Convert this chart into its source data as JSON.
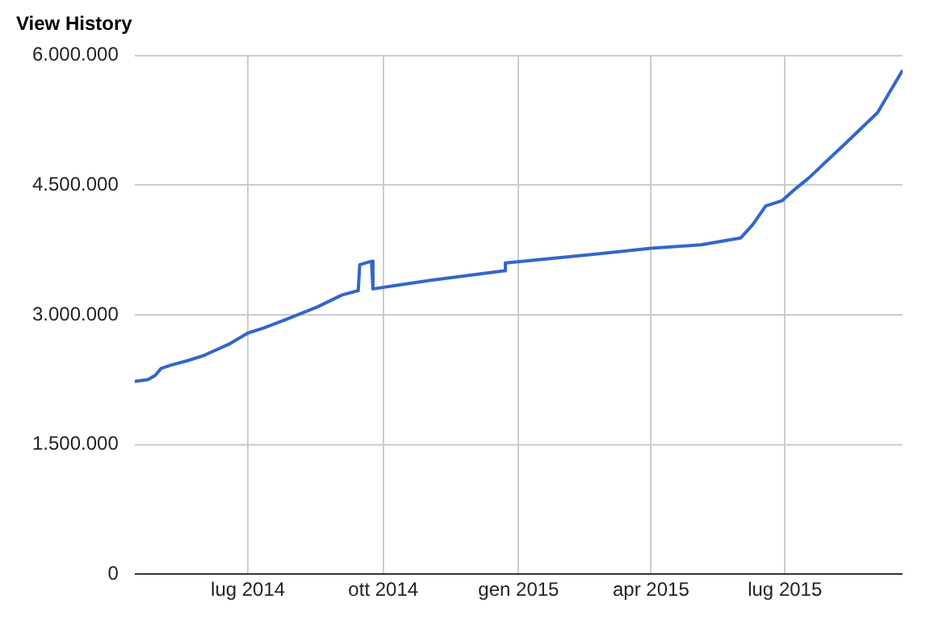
{
  "chart_data": {
    "type": "line",
    "title": "View History",
    "x": [
      "2014-04-15",
      "2014-04-24",
      "2014-04-29",
      "2014-05-03",
      "2014-05-10",
      "2014-05-21",
      "2014-06-01",
      "2014-06-18",
      "2014-07-01",
      "2014-07-12",
      "2014-07-26",
      "2014-08-17",
      "2014-09-03",
      "2014-09-14",
      "2014-09-15",
      "2014-09-23",
      "2014-09-24",
      "2014-11-02",
      "2014-12-22",
      "2014-12-23",
      "2015-02-21",
      "2015-04-01",
      "2015-05-05",
      "2015-06-01",
      "2015-06-09",
      "2015-06-18",
      "2015-06-29",
      "2015-07-09",
      "2015-07-17",
      "2015-08-11",
      "2015-09-02",
      "2015-09-19"
    ],
    "series": [
      {
        "color": "#3366cc",
        "values": [
          2230000,
          2250000,
          2300000,
          2380000,
          2420000,
          2470000,
          2530000,
          2660000,
          2790000,
          2850000,
          2940000,
          3090000,
          3230000,
          3280000,
          3580000,
          3620000,
          3300000,
          3400000,
          3510000,
          3600000,
          3700000,
          3770000,
          3810000,
          3890000,
          4040000,
          4260000,
          4320000,
          4470000,
          4580000,
          4980000,
          5340000,
          5830000
        ]
      }
    ],
    "xlim": [
      "2014-04-15",
      "2015-09-19"
    ],
    "xticks": [
      {
        "value": "2014-07",
        "label": "lug 2014"
      },
      {
        "value": "2014-10",
        "label": "ott 2014"
      },
      {
        "value": "2015-01",
        "label": "gen 2015"
      },
      {
        "value": "2015-04",
        "label": "apr 2015"
      },
      {
        "value": "2015-07",
        "label": "lug 2015"
      }
    ],
    "ylim": [
      0,
      6000000
    ],
    "yticks": [
      0,
      {
        "value": 1500000,
        "label": "1.500.000"
      },
      {
        "value": 3000000,
        "label": "3.000.000"
      },
      {
        "value": 4500000,
        "label": "4.500.000"
      },
      {
        "value": 6000000,
        "label": "6.000.000"
      }
    ],
    "grid": true,
    "legend": false,
    "marker": "none",
    "line_style": "solid"
  }
}
